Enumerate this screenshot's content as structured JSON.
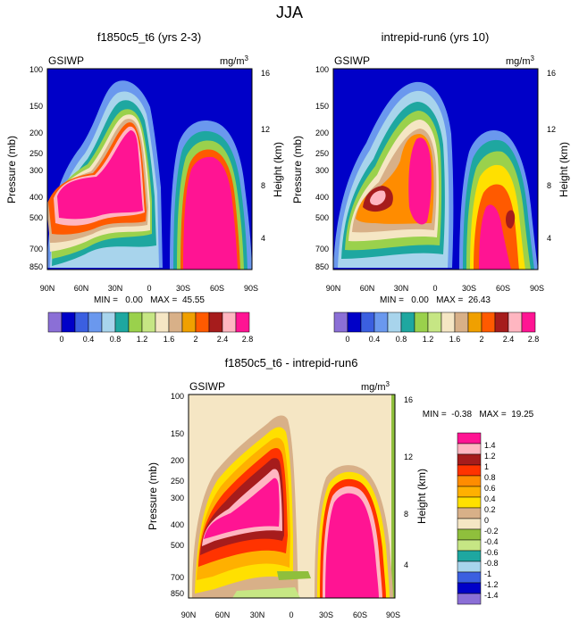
{
  "figure_title": "JJA",
  "colors": {
    "bg_blue": "#0000c8",
    "pink": "#ff1493",
    "diff_bg": "#f5e6c4"
  },
  "chart_data": [
    {
      "type": "contour",
      "title": "f1850c5_t6 (yrs 2-3)",
      "left_string": "GSIWP",
      "units": "mg/m",
      "units_sup": "3",
      "ylabel": "Pressure (mb)",
      "ylabel_right": "Height (km)",
      "x_ticks": [
        "90N",
        "60N",
        "30N",
        "0",
        "30S",
        "60S",
        "90S"
      ],
      "y_ticks": [
        "100",
        "150",
        "200",
        "250",
        "300",
        "400",
        "500",
        "700",
        "850"
      ],
      "y_ticks_right": [
        "16",
        "12",
        "8",
        "4"
      ],
      "stats": "MIN =   0.00   MAX =  45.55",
      "colorbar": {
        "labels": [
          "0",
          "0.4",
          "0.8",
          "1.2",
          "1.6",
          "2",
          "2.4",
          "2.8"
        ],
        "colors": [
          "#8b6fd6",
          "#0000c8",
          "#3b5fe0",
          "#6a98ee",
          "#a8d4ec",
          "#1ea7a0",
          "#9ad14c",
          "#c6e684",
          "#f5e6c4",
          "#d8b088",
          "#f0a000",
          "#ff5a00",
          "#a61c1c",
          "#ffb6c1",
          "#ff1493"
        ]
      }
    },
    {
      "type": "contour",
      "title": "intrepid-run6 (yrs 10)",
      "left_string": "GSIWP",
      "units": "mg/m",
      "units_sup": "3",
      "ylabel": "Pressure (mb)",
      "ylabel_right": "Height (km)",
      "x_ticks": [
        "90N",
        "60N",
        "30N",
        "0",
        "30S",
        "60S",
        "90S"
      ],
      "y_ticks": [
        "100",
        "150",
        "200",
        "250",
        "300",
        "400",
        "500",
        "700",
        "850"
      ],
      "y_ticks_right": [
        "16",
        "12",
        "8",
        "4"
      ],
      "stats": "MIN =   0.00   MAX =  26.43",
      "colorbar": {
        "labels": [
          "0",
          "0.4",
          "0.8",
          "1.2",
          "1.6",
          "2",
          "2.4",
          "2.8"
        ],
        "colors": [
          "#8b6fd6",
          "#0000c8",
          "#3b5fe0",
          "#6a98ee",
          "#a8d4ec",
          "#1ea7a0",
          "#9ad14c",
          "#c6e684",
          "#f5e6c4",
          "#d8b088",
          "#f0a000",
          "#ff5a00",
          "#a61c1c",
          "#ffb6c1",
          "#ff1493"
        ]
      }
    },
    {
      "type": "contour",
      "title": "f1850c5_t6 - intrepid-run6",
      "left_string": "GSIWP",
      "units": "mg/m",
      "units_sup": "3",
      "ylabel": "Pressure (mb)",
      "ylabel_right": "Height (km)",
      "x_ticks": [
        "90N",
        "60N",
        "30N",
        "0",
        "30S",
        "60S",
        "90S"
      ],
      "y_ticks": [
        "100",
        "150",
        "200",
        "250",
        "300",
        "400",
        "500",
        "700",
        "850"
      ],
      "y_ticks_right": [
        "16",
        "12",
        "8",
        "4"
      ],
      "stats": "MIN =  -0.38   MAX =  19.25",
      "colorbar": {
        "labels": [
          "1.4",
          "1.2",
          "1",
          "0.8",
          "0.6",
          "0.4",
          "0.2",
          "0",
          "-0.2",
          "-0.4",
          "-0.6",
          "-0.8",
          "-1",
          "-1.2",
          "-1.4"
        ],
        "colors": [
          "#ff1493",
          "#ffb6c1",
          "#a61c1c",
          "#ff3300",
          "#ff8c00",
          "#ffb000",
          "#ffe000",
          "#d8b088",
          "#f5e6c4",
          "#8fbf3c",
          "#c6e684",
          "#1ea7a0",
          "#a8d4ec",
          "#3b5fe0",
          "#0000c8",
          "#8b6fd6"
        ]
      }
    }
  ]
}
